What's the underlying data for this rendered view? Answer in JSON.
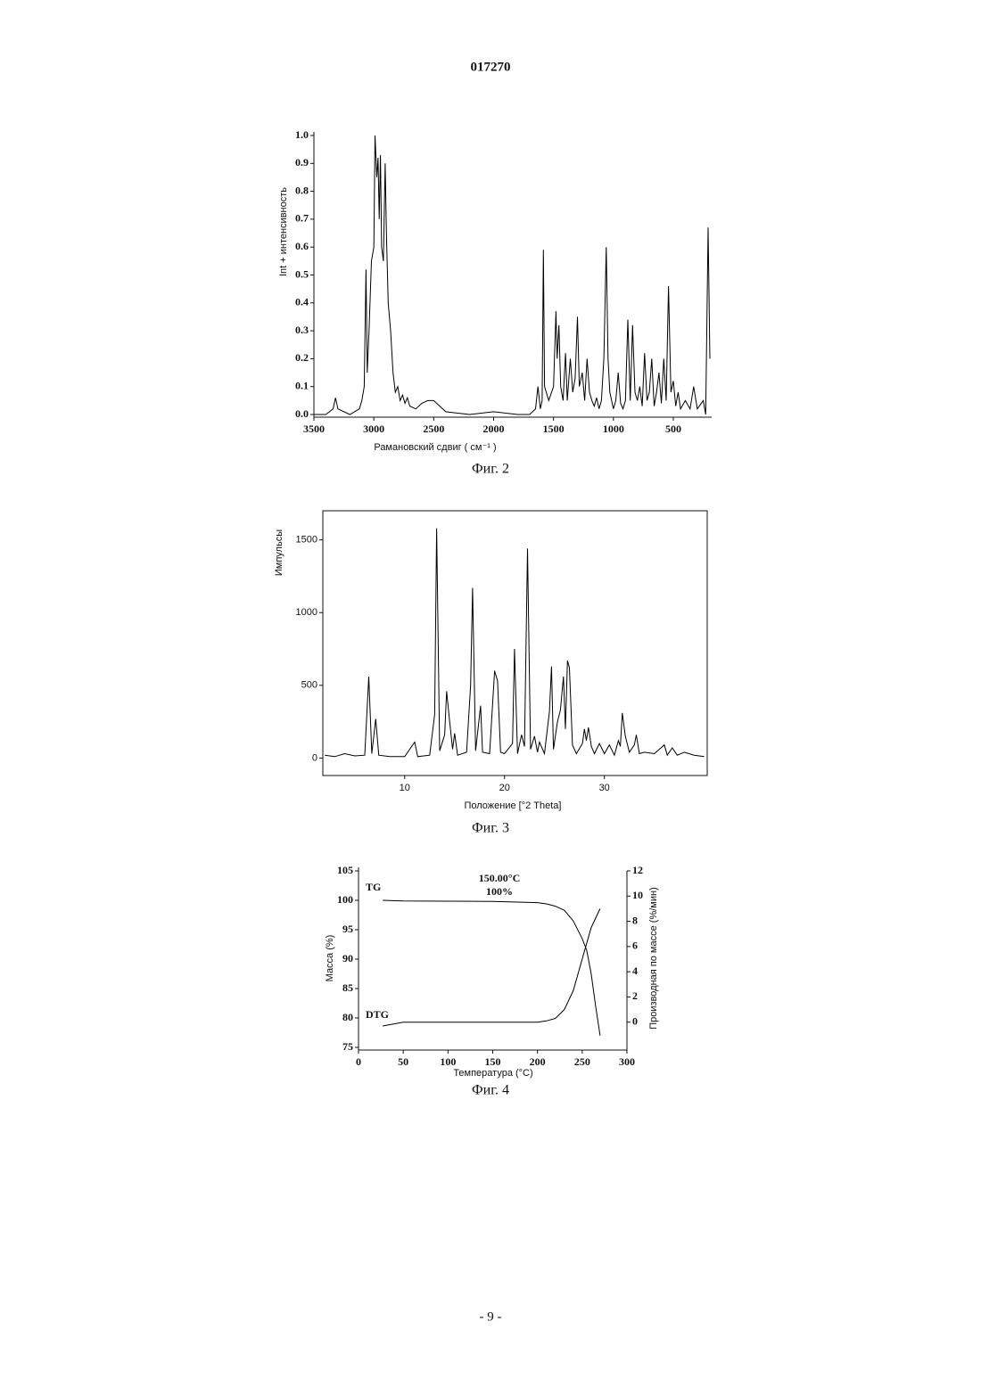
{
  "header": "017270",
  "footer": "- 9 -",
  "chart_data": [
    {
      "type": "line",
      "caption": "Фиг. 2",
      "xlabel": "Рамановский сдвиг ( см⁻¹ )",
      "ylabel": "Int + интенсивность",
      "color": "#000000",
      "xlim": [
        3500,
        180
      ],
      "ylim": [
        0,
        1
      ],
      "xticks": [
        3500,
        3000,
        2500,
        2000,
        1500,
        1000,
        500
      ],
      "yticks": [
        {
          "value": 0,
          "label": "0.0"
        },
        0.1,
        0.2,
        0.3,
        0.4,
        0.5,
        0.6,
        0.7,
        0.8,
        0.9,
        {
          "value": 1,
          "label": "1.0"
        }
      ],
      "x": [
        3500,
        3400,
        3340,
        3320,
        3300,
        3200,
        3120,
        3100,
        3080,
        3065,
        3055,
        3040,
        3020,
        3000,
        2990,
        2975,
        2965,
        2955,
        2945,
        2935,
        2920,
        2905,
        2895,
        2880,
        2860,
        2840,
        2820,
        2800,
        2780,
        2760,
        2740,
        2720,
        2700,
        2650,
        2600,
        2550,
        2500,
        2450,
        2400,
        2200,
        2000,
        1800,
        1700,
        1650,
        1630,
        1610,
        1595,
        1585,
        1575,
        1540,
        1500,
        1480,
        1470,
        1455,
        1440,
        1420,
        1400,
        1385,
        1360,
        1340,
        1320,
        1300,
        1285,
        1260,
        1240,
        1220,
        1200,
        1180,
        1160,
        1140,
        1120,
        1100,
        1080,
        1060,
        1045,
        1030,
        1000,
        980,
        960,
        940,
        920,
        900,
        880,
        860,
        840,
        820,
        800,
        780,
        760,
        740,
        720,
        700,
        680,
        660,
        640,
        620,
        600,
        580,
        560,
        540,
        520,
        500,
        480,
        460,
        440,
        400,
        360,
        330,
        300,
        250,
        230,
        210,
        195
      ],
      "values": [
        0,
        0,
        0.02,
        0.06,
        0.02,
        0,
        0.02,
        0.05,
        0.1,
        0.52,
        0.15,
        0.3,
        0.55,
        0.6,
        1,
        0.85,
        0.92,
        0.7,
        0.93,
        0.6,
        0.55,
        0.9,
        0.65,
        0.4,
        0.3,
        0.15,
        0.08,
        0.1,
        0.05,
        0.07,
        0.04,
        0.06,
        0.03,
        0.02,
        0.04,
        0.05,
        0.05,
        0.03,
        0.01,
        0,
        0.01,
        0,
        0,
        0.02,
        0.1,
        0.02,
        0.05,
        0.59,
        0.1,
        0.05,
        0.1,
        0.37,
        0.2,
        0.32,
        0.1,
        0.05,
        0.22,
        0.05,
        0.2,
        0.08,
        0.13,
        0.35,
        0.1,
        0.15,
        0.05,
        0.2,
        0.08,
        0.05,
        0.03,
        0.06,
        0.02,
        0.05,
        0.2,
        0.6,
        0.2,
        0.08,
        0.02,
        0.05,
        0.15,
        0.04,
        0.02,
        0.05,
        0.34,
        0.05,
        0.32,
        0.08,
        0.05,
        0.1,
        0.03,
        0.22,
        0.05,
        0.08,
        0.2,
        0.03,
        0.08,
        0.15,
        0.04,
        0.2,
        0.05,
        0.46,
        0.08,
        0.12,
        0.03,
        0.08,
        0.02,
        0.05,
        0.02,
        0.1,
        0.02,
        0.05,
        0,
        0.67,
        0.2
      ]
    },
    {
      "type": "line",
      "caption": "Фиг. 3",
      "xlabel": "Положение  [°2 Theta]",
      "ylabel": "Импульсы",
      "color": "#000000",
      "xlim": [
        1.8,
        40.3
      ],
      "ylim": [
        -120,
        1700
      ],
      "xticks": [
        10,
        20,
        30
      ],
      "yticks": [
        0,
        500,
        1000,
        1500
      ],
      "x": [
        2,
        3,
        4,
        5,
        6,
        6.4,
        6.7,
        7.1,
        7.4,
        8.5,
        10,
        11,
        11.3,
        12.5,
        13,
        13.2,
        13.5,
        14,
        14.2,
        14.5,
        14.8,
        15,
        15.3,
        16.2,
        16.6,
        16.8,
        17.1,
        17.6,
        17.8,
        18.5,
        19,
        19.3,
        19.6,
        20,
        20.8,
        21,
        21.3,
        21.7,
        22,
        22.3,
        22.6,
        23,
        23.3,
        23.5,
        24,
        24.5,
        24.7,
        24.9,
        25.3,
        25.6,
        25.9,
        26.1,
        26.3,
        26.5,
        26.8,
        27.2,
        27.8,
        28,
        28.2,
        28.4,
        28.7,
        29,
        29.5,
        30,
        30.5,
        31,
        31.4,
        31.6,
        31.8,
        32.1,
        32.5,
        33,
        33.2,
        33.5,
        34,
        35,
        36,
        36.3,
        36.8,
        37.3,
        38,
        39,
        40
      ],
      "values": [
        20,
        10,
        30,
        15,
        20,
        560,
        30,
        270,
        20,
        10,
        10,
        110,
        10,
        20,
        300,
        1580,
        50,
        160,
        460,
        250,
        60,
        170,
        20,
        40,
        500,
        1170,
        50,
        360,
        40,
        30,
        600,
        530,
        40,
        30,
        100,
        750,
        30,
        160,
        80,
        1440,
        60,
        150,
        40,
        110,
        30,
        320,
        630,
        60,
        250,
        330,
        560,
        200,
        670,
        620,
        90,
        30,
        100,
        200,
        120,
        210,
        80,
        30,
        100,
        30,
        90,
        20,
        120,
        80,
        310,
        150,
        40,
        90,
        160,
        30,
        40,
        30,
        90,
        20,
        70,
        20,
        40,
        20,
        10
      ]
    },
    {
      "type": "line",
      "caption": "Фиг. 4",
      "xlabel": "Температура (°C)",
      "ylabel": "Масса (%)",
      "y2label": "Производная по массе (%/мин)",
      "annotations": [
        "150.00°C",
        "100%"
      ],
      "xlim": [
        0,
        300
      ],
      "ylim": [
        75,
        105
      ],
      "y2lim": [
        -2,
        12
      ],
      "xticks": [
        0,
        50,
        100,
        150,
        200,
        250,
        300
      ],
      "yticks": [
        75,
        80,
        85,
        90,
        95,
        100,
        105
      ],
      "y2ticks": [
        0,
        2,
        4,
        6,
        8,
        10,
        12
      ],
      "series": [
        {
          "name": "TG",
          "color": "#000000",
          "x": [
            27,
            50,
            100,
            150,
            200,
            210,
            220,
            230,
            240,
            250,
            255,
            260,
            265,
            268,
            270
          ],
          "values": [
            100,
            99.9,
            99.85,
            99.8,
            99.6,
            99.4,
            99,
            98.3,
            96.5,
            93.5,
            91.5,
            87.5,
            82,
            79,
            77
          ]
        },
        {
          "name": "DTG",
          "color": "#000000",
          "axis": "y2",
          "x": [
            27,
            50,
            100,
            150,
            200,
            210,
            220,
            230,
            240,
            250,
            260,
            270
          ],
          "values": [
            -0.3,
            0,
            0,
            0,
            0,
            0.1,
            0.3,
            1,
            2.5,
            5,
            7.5,
            9
          ]
        }
      ]
    }
  ]
}
